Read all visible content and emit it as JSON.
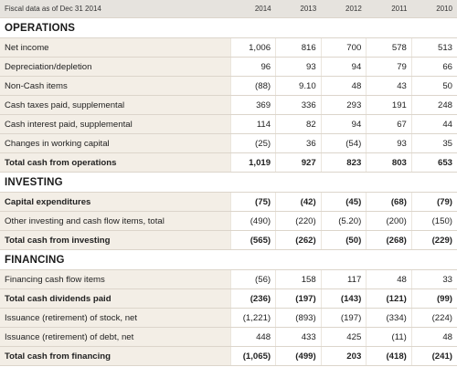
{
  "header": {
    "label": "Fiscal data as of Dec 31 2014",
    "years": [
      "2014",
      "2013",
      "2012",
      "2011",
      "2010"
    ]
  },
  "sections": [
    {
      "title": "OPERATIONS",
      "rows": [
        {
          "label": "Net income",
          "values": [
            "1,006",
            "816",
            "700",
            "578",
            "513"
          ],
          "bold": false,
          "total": false
        },
        {
          "label": "Depreciation/depletion",
          "values": [
            "96",
            "93",
            "94",
            "79",
            "66"
          ],
          "bold": false,
          "total": false
        },
        {
          "label": "Non-Cash items",
          "values": [
            "(88)",
            "9.10",
            "48",
            "43",
            "50"
          ],
          "bold": false,
          "total": false
        },
        {
          "label": "Cash taxes paid, supplemental",
          "values": [
            "369",
            "336",
            "293",
            "191",
            "248"
          ],
          "bold": false,
          "total": false
        },
        {
          "label": "Cash interest paid, supplemental",
          "values": [
            "114",
            "82",
            "94",
            "67",
            "44"
          ],
          "bold": false,
          "total": false
        },
        {
          "label": "Changes in working capital",
          "values": [
            "(25)",
            "36",
            "(54)",
            "93",
            "35"
          ],
          "bold": false,
          "total": false
        },
        {
          "label": "Total cash from operations",
          "values": [
            "1,019",
            "927",
            "823",
            "803",
            "653"
          ],
          "bold": true,
          "total": true
        }
      ]
    },
    {
      "title": "INVESTING",
      "rows": [
        {
          "label": "Capital expenditures",
          "values": [
            "(75)",
            "(42)",
            "(45)",
            "(68)",
            "(79)"
          ],
          "bold": true,
          "total": false
        },
        {
          "label": "Other investing and cash flow items, total",
          "values": [
            "(490)",
            "(220)",
            "(5.20)",
            "(200)",
            "(150)"
          ],
          "bold": false,
          "total": false
        },
        {
          "label": "Total cash from investing",
          "values": [
            "(565)",
            "(262)",
            "(50)",
            "(268)",
            "(229)"
          ],
          "bold": true,
          "total": true
        }
      ]
    },
    {
      "title": "FINANCING",
      "rows": [
        {
          "label": "Financing cash flow items",
          "values": [
            "(56)",
            "158",
            "117",
            "48",
            "33"
          ],
          "bold": false,
          "total": false
        },
        {
          "label": "Total cash dividends paid",
          "values": [
            "(236)",
            "(197)",
            "(143)",
            "(121)",
            "(99)"
          ],
          "bold": true,
          "total": false
        },
        {
          "label": "Issuance (retirement) of stock, net",
          "values": [
            "(1,221)",
            "(893)",
            "(197)",
            "(334)",
            "(224)"
          ],
          "bold": false,
          "total": false
        },
        {
          "label": "Issuance (retirement) of debt, net",
          "values": [
            "448",
            "433",
            "425",
            "(11)",
            "48"
          ],
          "bold": false,
          "total": false
        },
        {
          "label": "Total cash from financing",
          "values": [
            "(1,065)",
            "(499)",
            "203",
            "(418)",
            "(241)"
          ],
          "bold": true,
          "total": true
        }
      ]
    }
  ]
}
